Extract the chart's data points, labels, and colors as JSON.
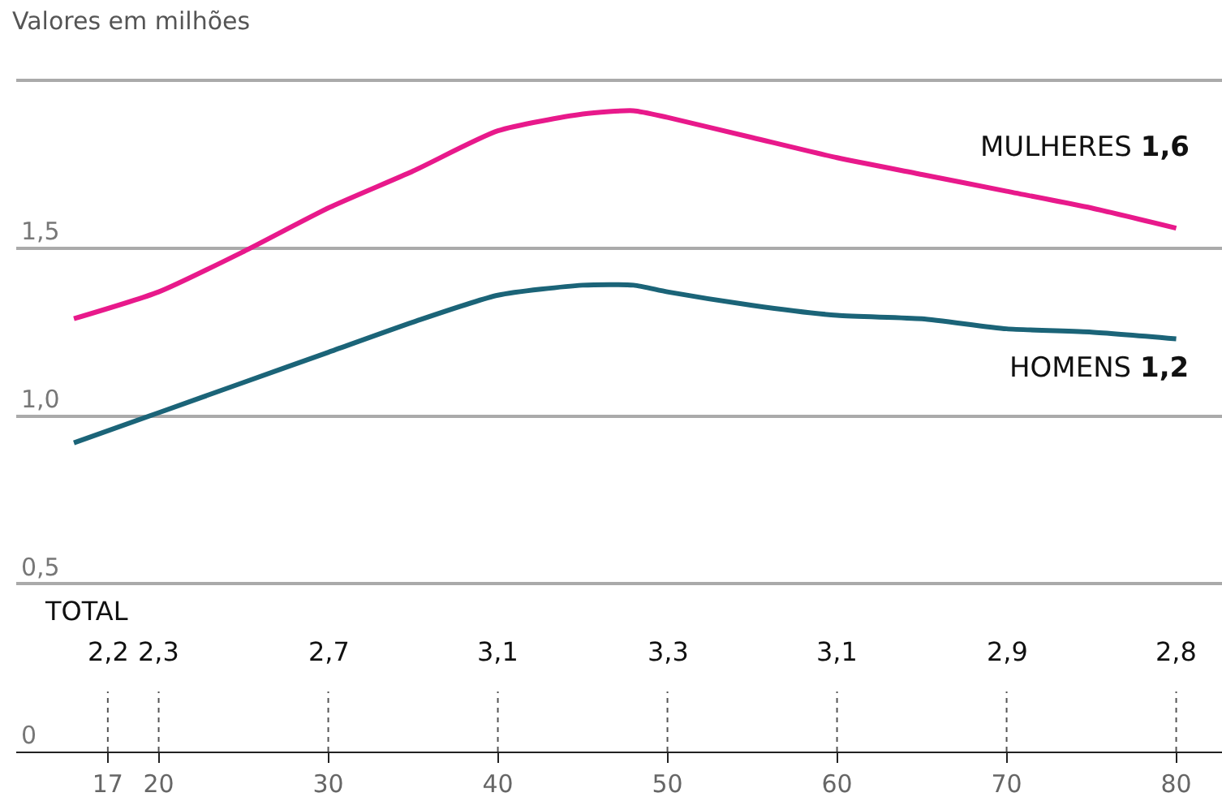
{
  "chart_data": {
    "type": "line",
    "title": "Valores em milhões",
    "x": [
      15,
      20,
      25,
      30,
      35,
      40,
      45,
      48,
      50,
      55,
      60,
      65,
      70,
      75,
      80
    ],
    "series": [
      {
        "name": "MULHERES",
        "color": "#e8198b",
        "values": [
          1.29,
          1.37,
          1.49,
          1.62,
          1.73,
          1.85,
          1.9,
          1.91,
          1.89,
          1.83,
          1.77,
          1.72,
          1.67,
          1.62,
          1.56
        ],
        "value_labels": [
          null,
          null,
          null,
          null,
          null,
          null,
          null,
          null,
          null,
          null,
          null,
          null,
          null,
          null,
          "1,6"
        ]
      },
      {
        "name": "HOMENS",
        "color": "#1b6478",
        "values": [
          0.92,
          1.01,
          1.1,
          1.19,
          1.28,
          1.36,
          1.39,
          1.39,
          1.37,
          1.33,
          1.3,
          1.29,
          1.26,
          1.25,
          1.23
        ],
        "value_labels": [
          null,
          null,
          null,
          null,
          null,
          null,
          null,
          null,
          null,
          null,
          null,
          null,
          null,
          null,
          "1,2"
        ]
      }
    ],
    "xlim": [
      11.6,
      82.7
    ],
    "xticks": [
      17,
      20,
      30,
      40,
      50,
      60,
      70,
      80
    ],
    "ylim": [
      0,
      2.24
    ],
    "yticks": [
      0,
      {
        "value": 0.5,
        "label": "0,5"
      },
      {
        "value": 1.0,
        "label": "1,0"
      },
      {
        "value": 1.5,
        "label": "1,5"
      },
      {
        "value": 2.0,
        "label": null
      }
    ],
    "grid": "y",
    "legend": false,
    "marker": "none",
    "line_style": "solid",
    "annotations": [
      "TOTAL",
      "2,2",
      "2,3",
      "2,7",
      "3,1",
      "3,3",
      "3,1",
      "2,9",
      "2,8"
    ]
  }
}
